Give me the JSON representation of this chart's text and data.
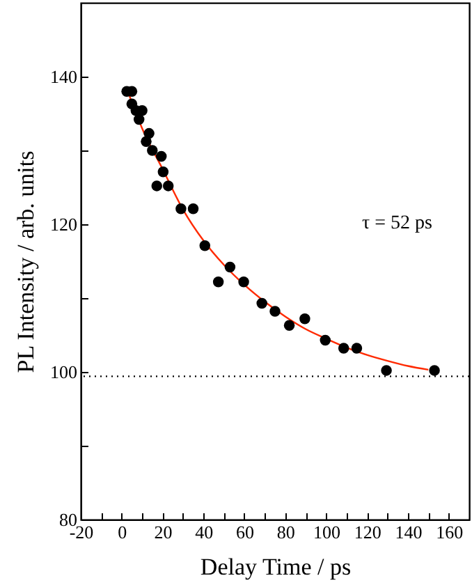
{
  "chart_data": {
    "type": "scatter",
    "xlabel": "Delay Time / ps",
    "ylabel": "PL Intensity / arb. units",
    "xlim": [
      -20,
      170
    ],
    "ylim": [
      80,
      150
    ],
    "xticks": [
      -20,
      {
        "value": -10,
        "label": null
      },
      0,
      {
        "value": 10,
        "label": null
      },
      20,
      {
        "value": 30,
        "label": null
      },
      40,
      {
        "value": 50,
        "label": null
      },
      60,
      {
        "value": 70,
        "label": null
      },
      80,
      {
        "value": 90,
        "label": null
      },
      100,
      {
        "value": 110,
        "label": null
      },
      120,
      {
        "value": 130,
        "label": null
      },
      140,
      {
        "value": 150,
        "label": null
      },
      160
    ],
    "yticks": [
      80,
      {
        "value": 90,
        "label": null
      },
      100,
      {
        "value": 110,
        "label": null
      },
      120,
      {
        "value": 130,
        "label": null
      },
      140
    ],
    "grid": false,
    "series": [
      {
        "marker": "circle",
        "color": "#000000",
        "x": [
          2.5,
          5,
          5,
          7,
          8.5,
          10,
          12,
          13.4,
          15,
          17.2,
          19.4,
          20.3,
          22.8,
          29,
          35,
          40.7,
          47.3,
          53,
          59.7,
          68.6,
          75,
          82,
          89.6,
          99.6,
          108.6,
          115,
          129.5,
          153
        ],
        "values": [
          138,
          138,
          136.3,
          135.4,
          134.2,
          135.4,
          131.2,
          132.3,
          130,
          125.2,
          129.2,
          127.1,
          125.2,
          122.1,
          122.1,
          117.1,
          112.2,
          114.2,
          112.2,
          109.3,
          108.2,
          106.3,
          107.2,
          104.3,
          103.2,
          103.2,
          100.2,
          100.2
        ]
      },
      {
        "type": "line",
        "marker": "none",
        "color": "#ff2a00",
        "line_style": "solid",
        "x": [
          3,
          10,
          20,
          30,
          40,
          50,
          60,
          70,
          80,
          90,
          100,
          110,
          120,
          130,
          140,
          150
        ],
        "values": [
          138,
          133,
          127.5,
          122,
          117.8,
          114.5,
          111.8,
          109.5,
          107.5,
          105.8,
          104.5,
          103.3,
          102.3,
          101.5,
          100.8,
          100.3
        ]
      }
    ],
    "ref_lines": [
      {
        "axis": "y",
        "value": 99.4,
        "color": "#000000",
        "line_style": "dotted"
      }
    ],
    "annotations": [
      "τ = 52 ps"
    ]
  }
}
